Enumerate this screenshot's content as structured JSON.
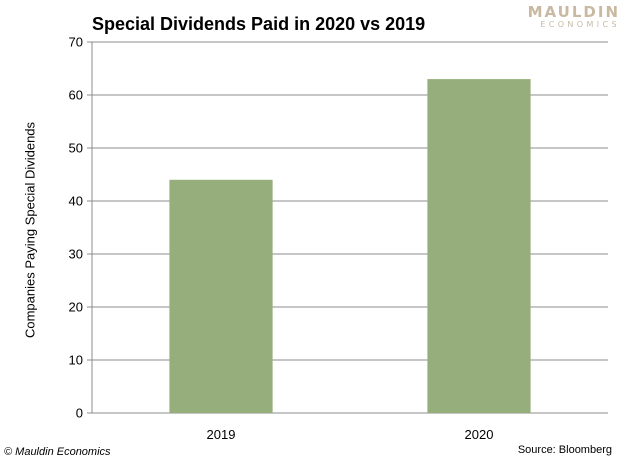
{
  "chart_data": {
    "type": "bar",
    "title": "Special Dividends Paid in 2020 vs 2019",
    "categories": [
      "2019",
      "2020"
    ],
    "values": [
      44,
      63
    ],
    "xlabel": "",
    "ylabel": "Companies Paying Special Dividends",
    "ylim": [
      0,
      70
    ],
    "yticks": [
      0,
      10,
      20,
      30,
      40,
      50,
      60,
      70
    ],
    "grid": true,
    "bar_color": "#95ae7b"
  },
  "brand": {
    "line1": "MAULDIN",
    "line2": "ECONOMICS"
  },
  "footer": {
    "copyright": "© Mauldin Economics",
    "source": "Source: Bloomberg"
  }
}
